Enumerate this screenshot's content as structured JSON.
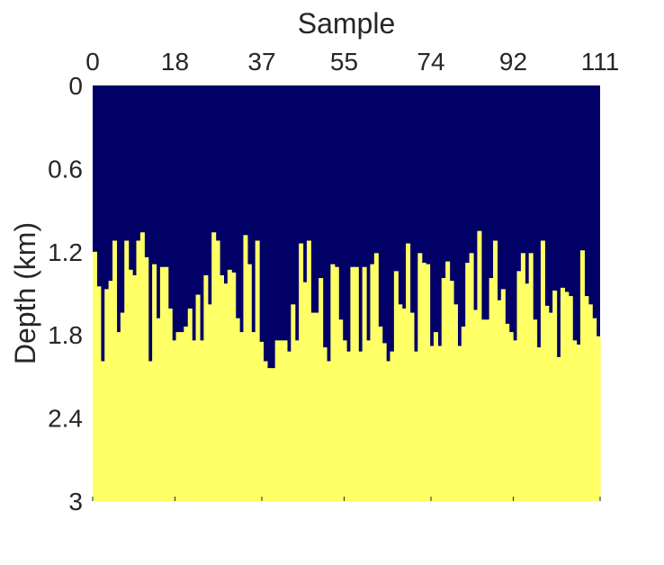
{
  "chart_data": {
    "type": "heatmap",
    "title": "",
    "xlabel": "Sample",
    "ylabel": "Depth (km)",
    "x_axis_position": "top",
    "xlim": [
      0,
      111
    ],
    "ylim": [
      0,
      3
    ],
    "y_direction": "down",
    "x_ticks": [
      0,
      18,
      37,
      55,
      74,
      92,
      111
    ],
    "x_tick_labels": [
      "0",
      "18",
      "37",
      "55",
      "74",
      "92",
      "111"
    ],
    "y_ticks": [
      0,
      0.6,
      1.2,
      1.8,
      2.4,
      3
    ],
    "y_tick_labels": [
      "0",
      "0.6",
      "1.2",
      "1.8",
      "2.4",
      "3"
    ],
    "upper_layer_color": "#000066",
    "lower_layer_color": "#ffff66",
    "grid": false,
    "legend": "none",
    "interface_depth_km": [
      1.2,
      1.45,
      1.99,
      1.47,
      1.41,
      1.12,
      1.78,
      1.64,
      1.12,
      1.33,
      1.37,
      1.12,
      1.06,
      1.24,
      1.99,
      1.29,
      1.68,
      1.31,
      1.31,
      1.61,
      1.84,
      1.78,
      1.78,
      1.74,
      1.61,
      1.84,
      1.51,
      1.84,
      1.37,
      1.58,
      1.06,
      1.12,
      1.37,
      1.43,
      1.33,
      1.35,
      1.68,
      1.78,
      1.08,
      1.29,
      1.78,
      1.12,
      1.85,
      1.99,
      2.04,
      2.04,
      1.84,
      1.84,
      1.84,
      1.92,
      1.58,
      1.84,
      1.14,
      1.42,
      1.12,
      1.64,
      1.64,
      1.39,
      1.89,
      1.99,
      1.29,
      1.31,
      1.69,
      1.84,
      1.92,
      1.31,
      1.31,
      1.92,
      1.31,
      1.84,
      1.29,
      1.21,
      1.74,
      1.86,
      1.99,
      1.92,
      1.34,
      1.58,
      1.61,
      1.14,
      1.64,
      1.92,
      1.21,
      1.28,
      1.29,
      1.88,
      1.78,
      1.88,
      1.39,
      1.27,
      1.41,
      1.58,
      1.88,
      1.74,
      1.28,
      1.21,
      1.62,
      1.05,
      1.69,
      1.69,
      1.39,
      1.12,
      1.55,
      1.47,
      1.72,
      1.78,
      1.84,
      1.34,
      1.21,
      1.43,
      1.21,
      1.69,
      1.89,
      1.12,
      1.59,
      1.64,
      1.48,
      1.96,
      1.46,
      1.49,
      1.52,
      1.84,
      1.87,
      1.19,
      1.52,
      1.58,
      1.68,
      1.81
    ]
  }
}
